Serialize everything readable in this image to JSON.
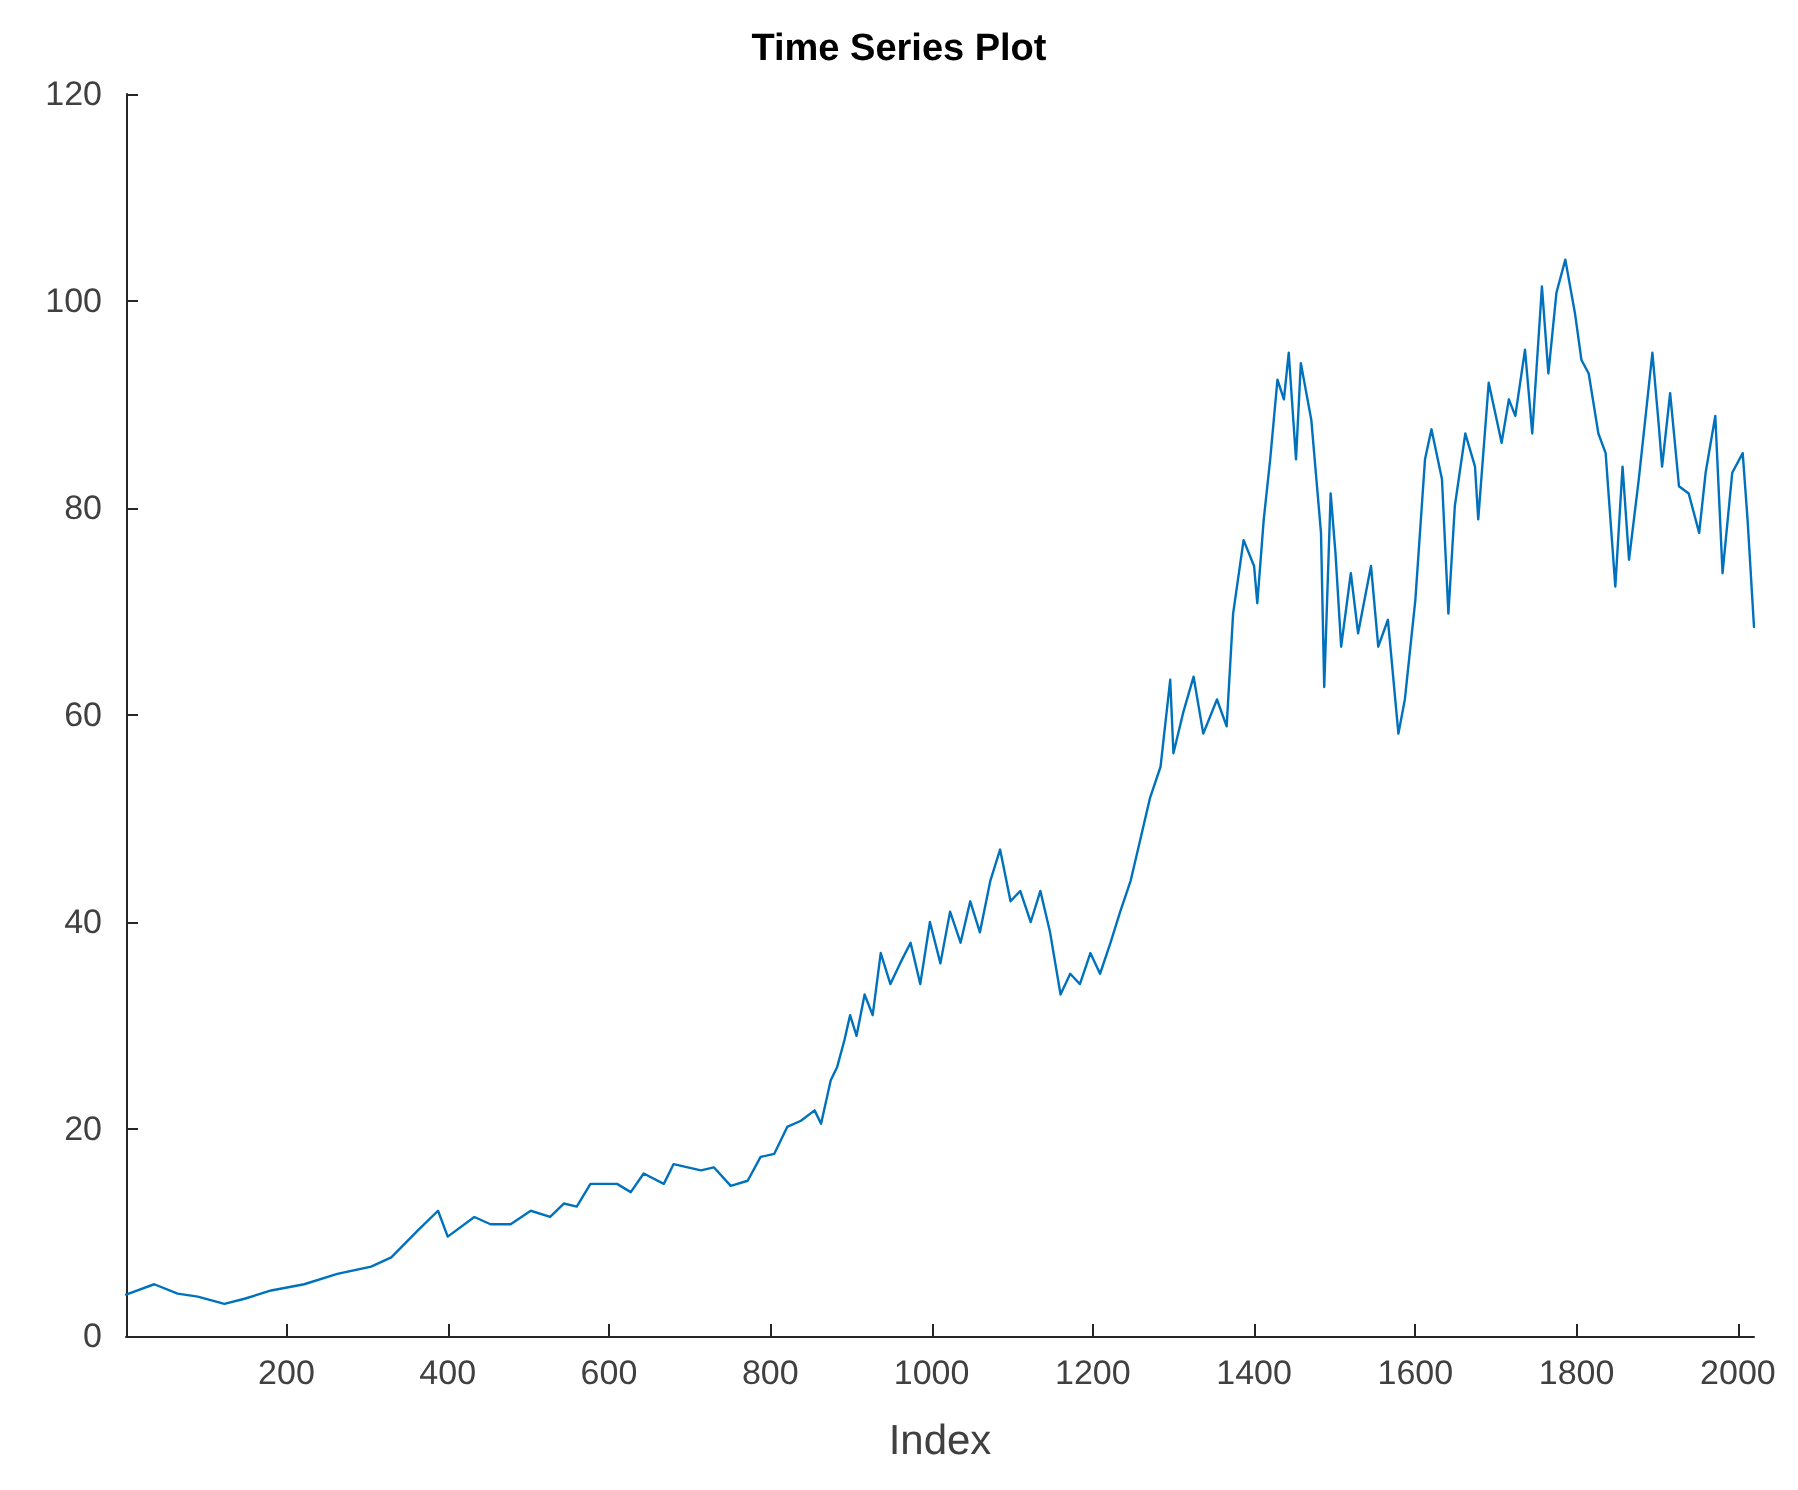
{
  "chart_data": {
    "type": "line",
    "title": "Time Series Plot",
    "xlabel": "Index",
    "color": "#0072bd",
    "x": [
      1,
      36,
      65,
      90,
      123,
      148,
      181,
      222,
      263,
      305,
      330,
      363,
      388,
      400,
      433,
      453,
      478,
      503,
      527,
      544,
      560,
      577,
      610,
      627,
      643,
      668,
      680,
      714,
      730,
      751,
      772,
      788,
      805,
      821,
      838,
      855,
      863,
      875,
      883,
      892,
      899,
      907,
      917,
      927,
      937,
      949,
      961,
      974,
      986,
      998,
      1011,
      1023,
      1036,
      1048,
      1060,
      1073,
      1085,
      1098,
      1110,
      1123,
      1135,
      1147,
      1160,
      1172,
      1184,
      1197,
      1209,
      1222,
      1234,
      1247,
      1259,
      1271,
      1284,
      1296,
      1300,
      1312,
      1325,
      1337,
      1354,
      1366,
      1374,
      1387,
      1400,
      1404,
      1412,
      1420,
      1429,
      1437,
      1443,
      1452,
      1458,
      1471,
      1483,
      1487,
      1495,
      1501,
      1508,
      1520,
      1529,
      1545,
      1554,
      1566,
      1579,
      1587,
      1600,
      1612,
      1620,
      1633,
      1641,
      1649,
      1662,
      1674,
      1678,
      1691,
      1699,
      1707,
      1716,
      1724,
      1736,
      1745,
      1757,
      1765,
      1775,
      1786,
      1798,
      1806,
      1815,
      1827,
      1836,
      1848,
      1857,
      1865,
      1877,
      1886,
      1894,
      1902,
      1906,
      1916,
      1927,
      1939,
      1952,
      1960,
      1972,
      1981,
      1993,
      2006,
      2012,
      2020
    ],
    "values": [
      4,
      5,
      4.1,
      3.8,
      3.1,
      3.6,
      4.4,
      5,
      6,
      6.7,
      7.6,
      10.2,
      12.1,
      9.6,
      11.5,
      10.8,
      10.8,
      12.1,
      11.5,
      12.8,
      12.5,
      14.7,
      14.7,
      13.9,
      15.7,
      14.7,
      16.6,
      16,
      16.3,
      14.5,
      15,
      17.3,
      17.6,
      20.2,
      20.8,
      21.8,
      20.5,
      24.7,
      26,
      28.6,
      31,
      29,
      33,
      31,
      37,
      34,
      36,
      38,
      34,
      40,
      36,
      41,
      38,
      42,
      39,
      44,
      47,
      42,
      43,
      40,
      43,
      39,
      33,
      35,
      34,
      37,
      35,
      38,
      41,
      44,
      48,
      52,
      55,
      63.4,
      56.3,
      60.2,
      63.7,
      58.2,
      61.5,
      58.9,
      69.8,
      76.9,
      74.4,
      70.8,
      78.9,
      84.7,
      92.4,
      90.5,
      95,
      84.7,
      94,
      88.5,
      77.6,
      62.7,
      81.4,
      75.6,
      66.6,
      73.7,
      67.9,
      74.4,
      66.6,
      69.2,
      58.2,
      61.5,
      71.1,
      84.7,
      87.6,
      82.8,
      69.8,
      80.2,
      87.2,
      84,
      78.9,
      92.1,
      89.2,
      86.3,
      90.5,
      88.9,
      95.3,
      87.2,
      101.4,
      93,
      100.8,
      104,
      98.8,
      94.3,
      93,
      87.2,
      85.3,
      72.4,
      84,
      75,
      82.7,
      89.2,
      95,
      87.9,
      84,
      91.1,
      82.1,
      81.4,
      77.6,
      83.4,
      88.9,
      73.7,
      83.4,
      85.3,
      78.9,
      68.5
    ],
    "xlim": [
      1,
      2020
    ],
    "xticks": [
      200,
      400,
      600,
      800,
      1000,
      1200,
      1400,
      1600,
      1800,
      2000
    ],
    "ylim": [
      0,
      120
    ],
    "yticks": [
      0,
      20,
      40,
      60,
      80,
      100,
      120
    ]
  }
}
